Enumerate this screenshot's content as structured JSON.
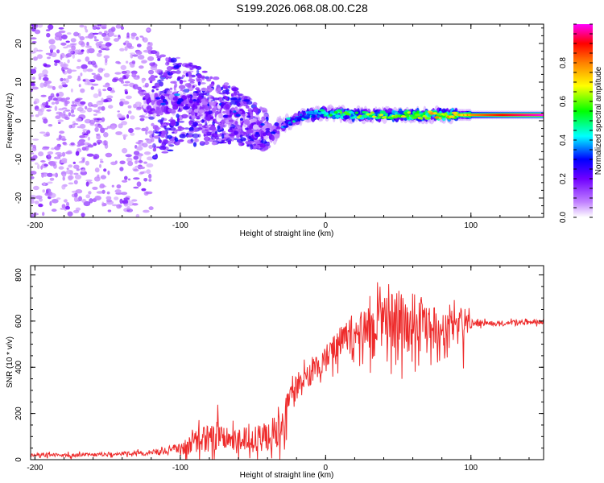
{
  "title": "S199.2026.068.08.00.C28",
  "chart_data": [
    {
      "type": "heatmap",
      "title": "S199.2026.068.08.00.C28",
      "xlabel": "Height of straight line (km)",
      "ylabel": "Frequency (Hz)",
      "xlim": [
        -203,
        150
      ],
      "ylim": [
        -25,
        25
      ],
      "xticks": [
        -200,
        -100,
        0,
        100
      ],
      "yticks": [
        -20,
        -10,
        0,
        10,
        20
      ],
      "colorbar": {
        "label": "Normalized spectral amplitude",
        "range": [
          0,
          1
        ],
        "ticks": [
          0.0,
          0.2,
          0.4,
          0.6,
          0.8
        ],
        "colors": [
          "#ffffff",
          "#a020f0",
          "#0000ff",
          "#00ffff",
          "#00ff00",
          "#ffff00",
          "#ff8000",
          "#ff0000",
          "#ff00ff"
        ]
      },
      "ridge": {
        "x": [
          -120,
          -100,
          -80,
          -60,
          -45,
          -35,
          -30,
          -20,
          -10,
          0,
          20,
          40,
          60,
          80,
          100,
          120,
          150
        ],
        "freq": [
          4,
          5,
          3,
          1,
          -2,
          -3,
          -1,
          0.5,
          1.5,
          2,
          1.5,
          1.5,
          1.5,
          1.5,
          1.5,
          1.5,
          1.5
        ],
        "amplitude": [
          0.2,
          0.25,
          0.2,
          0.2,
          0.2,
          0.25,
          0.3,
          0.35,
          0.4,
          0.45,
          0.5,
          0.55,
          0.6,
          0.65,
          0.75,
          0.85,
          0.95
        ]
      },
      "noise_region": {
        "x_range": [
          -203,
          -40
        ],
        "freq_range": [
          -25,
          25
        ]
      }
    },
    {
      "type": "line",
      "xlabel": "Height of straight line (km)",
      "ylabel": "SNR (10 * v/v)",
      "xlim": [
        -203,
        150
      ],
      "ylim": [
        0,
        840
      ],
      "xticks": [
        -200,
        -100,
        0,
        100
      ],
      "yticks": [
        0,
        200,
        400,
        600,
        800
      ],
      "color": "#ee2b2b",
      "series": [
        {
          "name": "SNR",
          "x": [
            -203,
            -180,
            -160,
            -140,
            -120,
            -110,
            -100,
            -90,
            -80,
            -74,
            -70,
            -60,
            -50,
            -40,
            -30,
            -27,
            -25,
            -20,
            -10,
            0,
            10,
            20,
            30,
            40,
            50,
            60,
            70,
            80,
            90,
            96,
            100,
            110,
            120,
            130,
            140,
            150
          ],
          "mean": [
            20,
            20,
            22,
            25,
            30,
            40,
            50,
            75,
            95,
            110,
            90,
            90,
            95,
            105,
            125,
            200,
            290,
            330,
            370,
            450,
            520,
            560,
            580,
            600,
            610,
            610,
            600,
            590,
            580,
            575,
            590,
            590,
            590,
            592,
            596,
            600
          ],
          "spread": [
            10,
            10,
            10,
            12,
            15,
            20,
            30,
            60,
            80,
            100,
            60,
            60,
            60,
            80,
            100,
            120,
            60,
            50,
            60,
            70,
            80,
            100,
            120,
            140,
            150,
            140,
            120,
            100,
            80,
            120,
            20,
            15,
            15,
            15,
            15,
            15
          ]
        }
      ]
    }
  ]
}
